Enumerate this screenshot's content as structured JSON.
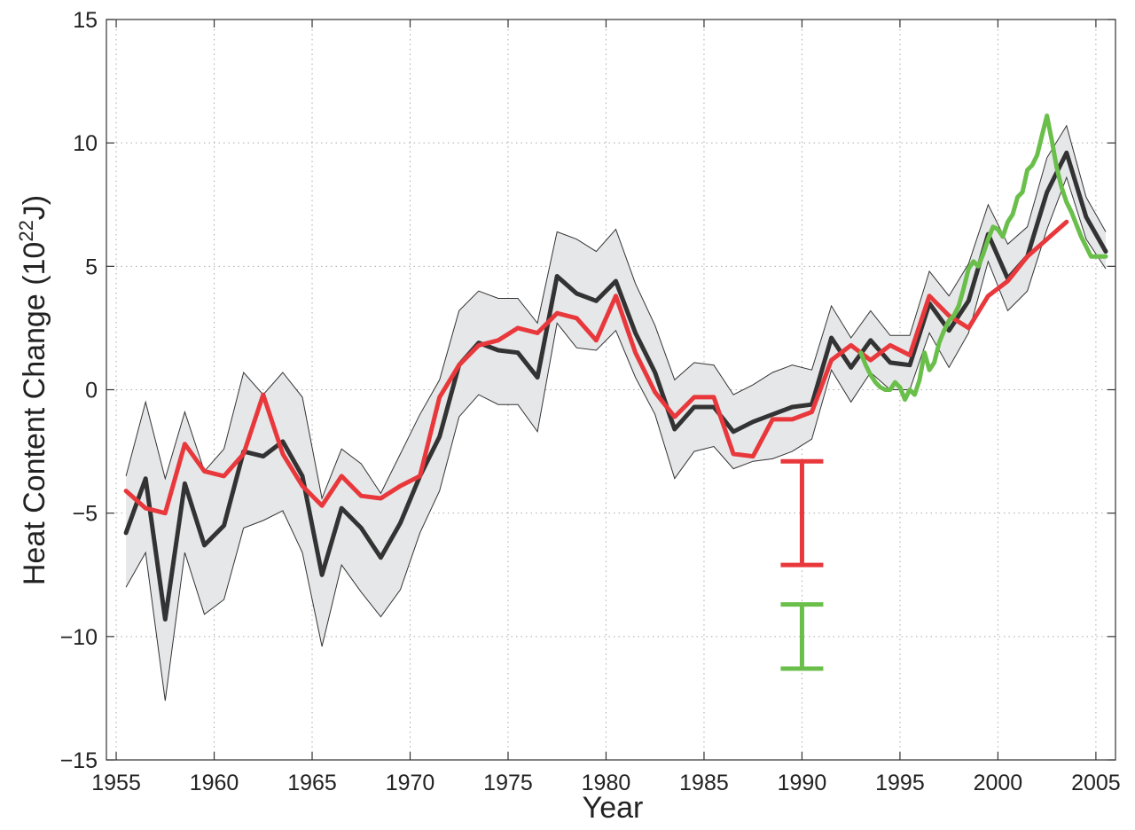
{
  "chart_data": {
    "type": "line",
    "title": "",
    "xlabel": "Year",
    "ylabel": "Heat Content Change (10",
    "ylabel_sup": "22",
    "ylabel_suffix": "J)",
    "xlim": [
      1954.5,
      2006
    ],
    "ylim": [
      -15,
      15
    ],
    "xticks": [
      1955,
      1960,
      1965,
      1970,
      1975,
      1980,
      1985,
      1990,
      1995,
      2000,
      2005
    ],
    "xtick_labels": [
      "1955",
      "1960",
      "1965",
      "1970",
      "1975",
      "1980",
      "1985",
      "1990",
      "1995",
      "2000",
      "2005"
    ],
    "yticks": [
      -15,
      -10,
      -5,
      0,
      5,
      10,
      15
    ],
    "ytick_labels": [
      "−15",
      "−10",
      "−5",
      "0",
      "5",
      "10",
      "15"
    ],
    "grid": true,
    "legend": "none",
    "colors": {
      "black": "#333333",
      "red": "#e8383c",
      "green": "#6abf4b",
      "band": "#e6e7e9",
      "band_edge": "#333333"
    },
    "band": {
      "x": [
        1955.5,
        1956.5,
        1957.5,
        1958.5,
        1959.5,
        1960.5,
        1961.5,
        1962.5,
        1963.5,
        1964.5,
        1965.5,
        1966.5,
        1967.5,
        1968.5,
        1969.5,
        1970.5,
        1971.5,
        1972.5,
        1973.5,
        1974.5,
        1975.5,
        1976.5,
        1977.5,
        1978.5,
        1979.5,
        1980.5,
        1981.5,
        1982.5,
        1983.5,
        1984.5,
        1985.5,
        1986.5,
        1987.5,
        1988.5,
        1989.5,
        1990.5,
        1991.5,
        1992.5,
        1993.5,
        1994.5,
        1995.5,
        1996.5,
        1997.5,
        1998.5,
        1999.5,
        2000.5,
        2001.5,
        2002.5,
        2003.5,
        2004.5,
        2005.5
      ],
      "upper": [
        -3.5,
        -0.5,
        -3.6,
        -0.9,
        -3.3,
        -2.4,
        0.7,
        -0.2,
        0.7,
        -0.3,
        -4.4,
        -2.4,
        -3.0,
        -4.2,
        -2.6,
        -1.0,
        0.4,
        3.2,
        4.0,
        3.7,
        3.7,
        2.7,
        6.4,
        6.1,
        5.6,
        6.5,
        4.3,
        2.6,
        0.4,
        1.1,
        1.0,
        -0.2,
        0.2,
        0.7,
        1.0,
        0.8,
        3.4,
        2.1,
        3.2,
        2.2,
        2.2,
        4.8,
        3.8,
        5.1,
        7.5,
        5.9,
        6.6,
        9.4,
        10.7,
        7.8,
        6.4
      ],
      "lower": [
        -8.0,
        -6.6,
        -12.6,
        -6.6,
        -9.1,
        -8.5,
        -5.6,
        -5.3,
        -4.9,
        -6.6,
        -10.4,
        -7.1,
        -8.2,
        -9.2,
        -8.1,
        -5.8,
        -4.1,
        -1.1,
        -0.2,
        -0.6,
        -0.6,
        -1.7,
        2.7,
        1.7,
        1.6,
        2.4,
        0.5,
        -1.0,
        -3.6,
        -2.5,
        -2.3,
        -3.2,
        -2.9,
        -2.8,
        -2.5,
        -2.0,
        0.8,
        -0.5,
        0.7,
        0.0,
        0.0,
        2.3,
        0.9,
        2.3,
        5.2,
        3.2,
        4.0,
        6.5,
        8.6,
        6.1,
        4.9
      ]
    },
    "series": [
      {
        "color": "black",
        "width": 5,
        "x": [
          1955.5,
          1956.5,
          1957.5,
          1958.5,
          1959.5,
          1960.5,
          1961.5,
          1962.5,
          1963.5,
          1964.5,
          1965.5,
          1966.5,
          1967.5,
          1968.5,
          1969.5,
          1970.5,
          1971.5,
          1972.5,
          1973.5,
          1974.5,
          1975.5,
          1976.5,
          1977.5,
          1978.5,
          1979.5,
          1980.5,
          1981.5,
          1982.5,
          1983.5,
          1984.5,
          1985.5,
          1986.5,
          1987.5,
          1988.5,
          1989.5,
          1990.5,
          1991.5,
          1992.5,
          1993.5,
          1994.5,
          1995.5,
          1996.5,
          1997.5,
          1998.5,
          1999.5,
          2000.5,
          2001.5,
          2002.5,
          2003.5,
          2004.5,
          2005.5
        ],
        "values": [
          -5.8,
          -3.6,
          -9.3,
          -3.8,
          -6.3,
          -5.5,
          -2.5,
          -2.7,
          -2.1,
          -3.5,
          -7.5,
          -4.8,
          -5.6,
          -6.8,
          -5.4,
          -3.5,
          -1.9,
          1.0,
          1.9,
          1.6,
          1.5,
          0.5,
          4.6,
          3.9,
          3.6,
          4.4,
          2.3,
          0.7,
          -1.6,
          -0.7,
          -0.7,
          -1.7,
          -1.3,
          -1.0,
          -0.7,
          -0.6,
          2.1,
          0.9,
          2.0,
          1.1,
          1.0,
          3.5,
          2.4,
          3.6,
          6.3,
          4.5,
          5.4,
          8.0,
          9.6,
          7.0,
          5.6
        ]
      },
      {
        "color": "red",
        "width": 5,
        "x": [
          1955.5,
          1956.5,
          1957.5,
          1958.5,
          1959.5,
          1960.5,
          1961.5,
          1962.5,
          1963.5,
          1964.5,
          1965.5,
          1966.5,
          1967.5,
          1968.5,
          1969.5,
          1970.5,
          1971.5,
          1972.5,
          1973.5,
          1974.5,
          1975.5,
          1976.5,
          1977.5,
          1978.5,
          1979.5,
          1980.5,
          1981.5,
          1982.5,
          1983.5,
          1984.5,
          1985.5,
          1986.5,
          1987.5,
          1988.5,
          1989.5,
          1990.5,
          1991.5,
          1992.5,
          1993.5,
          1994.5,
          1995.5,
          1996.5,
          1997.5,
          1998.5,
          1999.5,
          2000.5,
          2001.5,
          2002.5,
          2003.5
        ],
        "values": [
          -4.1,
          -4.8,
          -5.0,
          -2.2,
          -3.3,
          -3.5,
          -2.6,
          -0.2,
          -2.6,
          -3.9,
          -4.7,
          -3.5,
          -4.3,
          -4.4,
          -3.9,
          -3.5,
          -0.3,
          1.0,
          1.8,
          2.0,
          2.5,
          2.3,
          3.1,
          2.9,
          2.0,
          3.8,
          1.5,
          -0.1,
          -1.1,
          -0.3,
          -0.3,
          -2.6,
          -2.7,
          -1.2,
          -1.2,
          -0.9,
          1.2,
          1.8,
          1.2,
          1.8,
          1.4,
          3.8,
          3.0,
          2.5,
          3.8,
          4.4,
          5.4,
          6.1,
          6.8
        ]
      },
      {
        "color": "green",
        "width": 5,
        "x": [
          1993.0,
          1993.25,
          1993.5,
          1993.75,
          1994.0,
          1994.25,
          1994.5,
          1994.75,
          1995.0,
          1995.25,
          1995.5,
          1995.75,
          1996.0,
          1996.25,
          1996.5,
          1996.75,
          1997.0,
          1997.25,
          1997.5,
          1997.75,
          1998.0,
          1998.25,
          1998.5,
          1998.75,
          1999.0,
          1999.25,
          1999.5,
          1999.75,
          2000.0,
          2000.25,
          2000.5,
          2000.75,
          2001.0,
          2001.25,
          2001.5,
          2001.75,
          2002.0,
          2002.25,
          2002.5,
          2002.75,
          2003.0,
          2003.25,
          2003.5,
          2003.75,
          2004.0,
          2004.25,
          2004.5,
          2004.75,
          2005.0,
          2005.25,
          2005.5
        ],
        "values": [
          1.5,
          1.0,
          0.6,
          0.3,
          0.1,
          0.0,
          0.0,
          0.3,
          0.1,
          -0.4,
          0.0,
          -0.2,
          0.4,
          1.5,
          0.8,
          1.1,
          1.9,
          2.4,
          2.8,
          3.0,
          3.4,
          4.1,
          4.9,
          5.2,
          5.0,
          5.5,
          6.1,
          6.6,
          6.5,
          6.2,
          6.8,
          7.1,
          7.8,
          8.0,
          8.9,
          9.1,
          9.5,
          10.3,
          11.1,
          10.1,
          9.0,
          8.2,
          7.6,
          7.2,
          6.7,
          6.2,
          5.8,
          5.4,
          5.4,
          5.4,
          5.4
        ]
      }
    ],
    "error_bars": [
      {
        "color": "red",
        "x": 1990,
        "low": -7.1,
        "high": -2.9
      },
      {
        "color": "green",
        "x": 1990,
        "low": -11.3,
        "high": -8.7
      }
    ]
  }
}
